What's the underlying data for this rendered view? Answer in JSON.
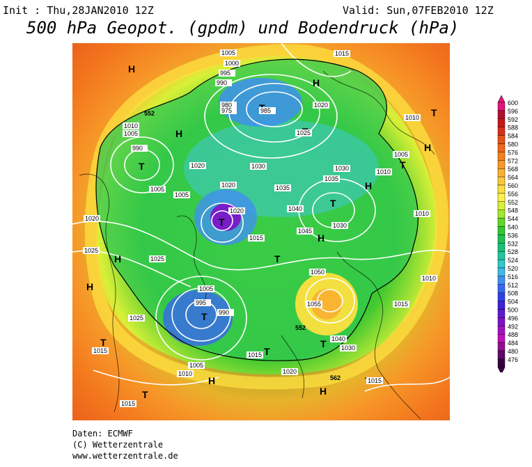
{
  "header": {
    "init": "Init : Thu,28JAN2010 12Z",
    "valid": "Valid: Sun,07FEB2010 12Z",
    "title": "500 hPa Geopot. (gpdm) und Bodendruck (hPa)"
  },
  "footer": {
    "line1": "Daten: ECMWF",
    "line2": "(C) Wetterzentrale",
    "line3": "www.wetterzentrale.de"
  },
  "legend": {
    "levels": [
      "600",
      "596",
      "592",
      "588",
      "584",
      "580",
      "576",
      "572",
      "568",
      "564",
      "560",
      "556",
      "552",
      "548",
      "544",
      "540",
      "536",
      "532",
      "528",
      "524",
      "520",
      "516",
      "512",
      "508",
      "504",
      "500",
      "496",
      "492",
      "488",
      "484",
      "480",
      "476"
    ],
    "colors": [
      "#e0187a",
      "#b01030",
      "#c81818",
      "#d83018",
      "#e85018",
      "#f06818",
      "#f48020",
      "#f89828",
      "#fab030",
      "#fcc838",
      "#fde040",
      "#fef048",
      "#d8f038",
      "#a0e830",
      "#60d828",
      "#30c830",
      "#20c050",
      "#18c078",
      "#20c8a0",
      "#30c8c8",
      "#40b8e8",
      "#4090f0",
      "#3868f0",
      "#3040e8",
      "#4020d8",
      "#6018d0",
      "#8010c8",
      "#a010c0",
      "#c010b8",
      "#901090",
      "#600868",
      "#380040"
    ]
  },
  "map_labels": {
    "H": "H",
    "T": "T",
    "isobars": [
      "1005",
      "1000",
      "995",
      "990",
      "985",
      "980",
      "975",
      "1010",
      "1015",
      "1020",
      "1025",
      "1030",
      "1035",
      "1040",
      "1045",
      "1050",
      "1055"
    ],
    "contours": [
      "552",
      "562"
    ]
  }
}
